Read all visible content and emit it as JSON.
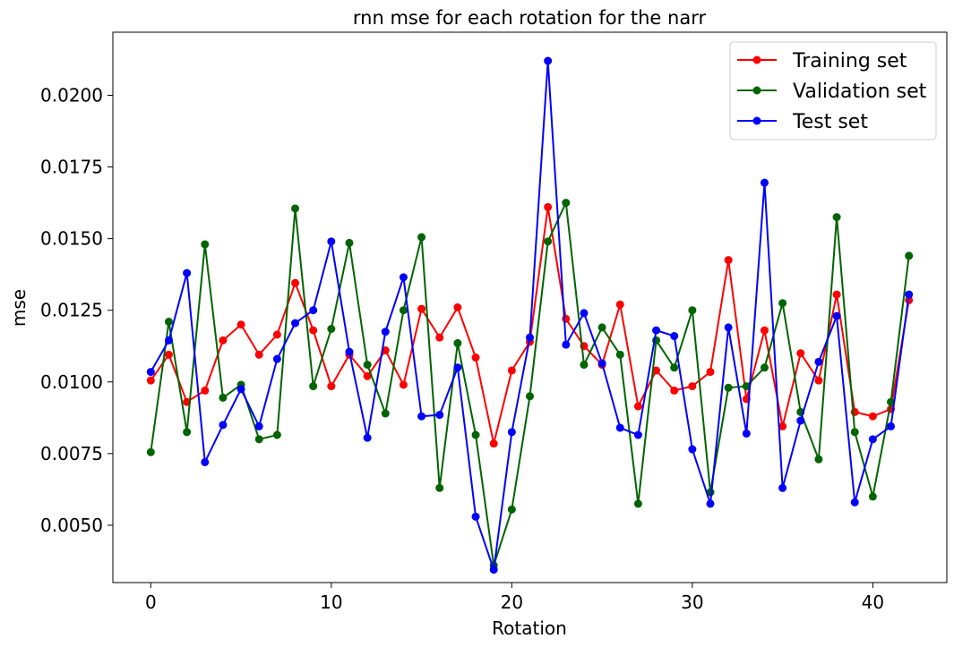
{
  "chart_data": {
    "type": "line",
    "title": "rnn mse for each rotation for the narr",
    "xlabel": "Rotation",
    "ylabel": "mse",
    "xlim": [
      -2.1,
      44.1
    ],
    "ylim": [
      0.003,
      0.0222
    ],
    "xticks": [
      0,
      10,
      20,
      30,
      40
    ],
    "xtick_labels": [
      "0",
      "10",
      "20",
      "30",
      "40"
    ],
    "yticks": [
      0.005,
      0.0075,
      0.01,
      0.0125,
      0.015,
      0.0175,
      0.02
    ],
    "ytick_labels": [
      "0.0050",
      "0.0075",
      "0.0100",
      "0.0125",
      "0.0150",
      "0.0175",
      "0.0200"
    ],
    "legend_position": "top-right",
    "grid": false,
    "x": [
      0,
      1,
      2,
      3,
      4,
      5,
      6,
      7,
      8,
      9,
      10,
      11,
      12,
      13,
      14,
      15,
      16,
      17,
      18,
      19,
      20,
      21,
      22,
      23,
      24,
      25,
      26,
      27,
      28,
      29,
      30,
      31,
      32,
      33,
      34,
      35,
      36,
      37,
      38,
      39,
      40,
      41,
      42
    ],
    "series": [
      {
        "name": "Training set",
        "color": "#ff0000",
        "values": [
          0.01005,
          0.01095,
          0.0093,
          0.0097,
          0.01145,
          0.012,
          0.01095,
          0.01165,
          0.01345,
          0.0118,
          0.00985,
          0.01095,
          0.0102,
          0.0111,
          0.0099,
          0.01255,
          0.01155,
          0.0126,
          0.01085,
          0.00785,
          0.0104,
          0.0114,
          0.0161,
          0.0122,
          0.01125,
          0.0106,
          0.0127,
          0.00915,
          0.0104,
          0.0097,
          0.00985,
          0.01035,
          0.01425,
          0.0094,
          0.0118,
          0.00845,
          0.011,
          0.01005,
          0.01305,
          0.00895,
          0.0088,
          0.00905,
          0.01285
        ]
      },
      {
        "name": "Validation set",
        "color": "#006400",
        "values": [
          0.00755,
          0.0121,
          0.00825,
          0.0148,
          0.00945,
          0.0099,
          0.008,
          0.00815,
          0.01605,
          0.00985,
          0.01185,
          0.01485,
          0.0106,
          0.0089,
          0.0125,
          0.01505,
          0.0063,
          0.01135,
          0.00815,
          0.0036,
          0.00555,
          0.0095,
          0.0149,
          0.01625,
          0.0106,
          0.0119,
          0.01095,
          0.00575,
          0.01145,
          0.0105,
          0.0125,
          0.00615,
          0.0098,
          0.00985,
          0.0105,
          0.01275,
          0.00895,
          0.0073,
          0.01575,
          0.00825,
          0.006,
          0.0093,
          0.0144
        ]
      },
      {
        "name": "Test set",
        "color": "#0000ff",
        "values": [
          0.01035,
          0.01145,
          0.0138,
          0.0072,
          0.0085,
          0.00975,
          0.00845,
          0.0108,
          0.01205,
          0.0125,
          0.0149,
          0.01105,
          0.00805,
          0.01175,
          0.01365,
          0.0088,
          0.00885,
          0.0105,
          0.0053,
          0.00345,
          0.00825,
          0.01155,
          0.0212,
          0.0113,
          0.0124,
          0.01065,
          0.0084,
          0.00815,
          0.0118,
          0.0116,
          0.00765,
          0.00575,
          0.0119,
          0.0082,
          0.01695,
          0.0063,
          0.00865,
          0.0107,
          0.0123,
          0.0058,
          0.008,
          0.00845,
          0.01305
        ]
      }
    ]
  }
}
